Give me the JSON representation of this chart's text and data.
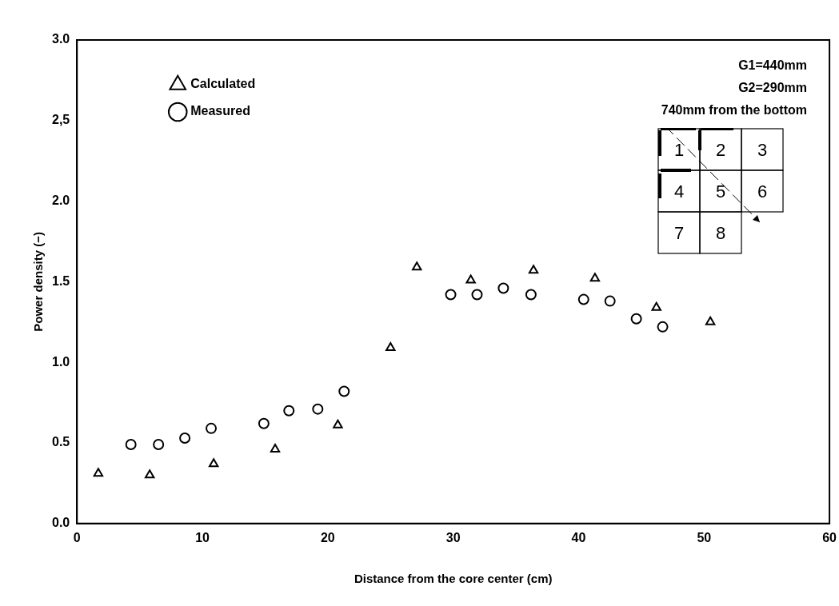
{
  "chart_data": {
    "type": "scatter",
    "xlabel": "Distance from the core center (cm)",
    "ylabel": "Power density (−)",
    "xlim": [
      0,
      60
    ],
    "xticks": [
      0,
      10,
      20,
      30,
      40,
      50,
      60
    ],
    "ylim": [
      0,
      3
    ],
    "yticks": [
      {
        "value": 0,
        "label": "0.0"
      },
      {
        "value": 0.5,
        "label": "0.5"
      },
      {
        "value": 1,
        "label": "1.0"
      },
      {
        "value": 1.5,
        "label": "1.5"
      },
      {
        "value": 2,
        "label": "2.0"
      },
      {
        "value": 2.5,
        "label": "2,5"
      },
      {
        "value": 3,
        "label": "3.0"
      }
    ],
    "grid": false,
    "legend": "top left",
    "series": [
      {
        "name": "Calculated",
        "color": "#000000",
        "marker": "triangle",
        "x": [
          1.7,
          5.8,
          10.9,
          15.8,
          20.8,
          25.0,
          27.1,
          31.4,
          36.4,
          41.3,
          46.2,
          50.5
        ],
        "values": [
          0.31,
          0.3,
          0.37,
          0.46,
          0.61,
          1.09,
          1.59,
          1.51,
          1.57,
          1.52,
          1.34,
          1.25
        ]
      },
      {
        "name": "Measured",
        "color": "#000000",
        "marker": "circle",
        "x": [
          4.3,
          6.5,
          8.6,
          10.7,
          14.9,
          16.9,
          19.2,
          21.3,
          29.8,
          31.9,
          34.0,
          36.2,
          40.4,
          42.5,
          44.6,
          46.7
        ],
        "values": [
          0.49,
          0.49,
          0.53,
          0.59,
          0.62,
          0.7,
          0.71,
          0.82,
          1.42,
          1.42,
          1.46,
          1.42,
          1.39,
          1.38,
          1.27,
          1.22
        ]
      }
    ],
    "annotations": [
      "G1=440mm",
      "G2=290mm",
      "740mm from the bottom",
      "1",
      "2",
      "3",
      "4",
      "5",
      "6",
      "7",
      "8"
    ]
  }
}
